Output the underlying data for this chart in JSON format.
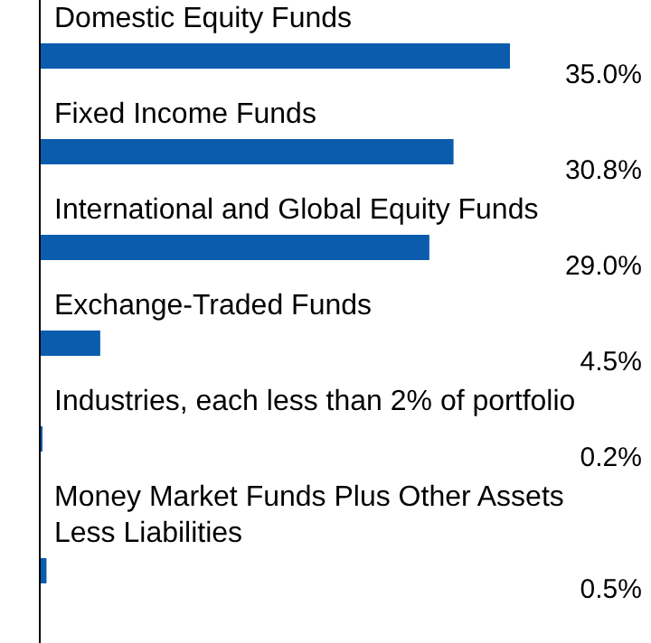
{
  "chart_data": {
    "type": "bar",
    "orientation": "horizontal",
    "categories": [
      "Domestic Equity Funds",
      "Fixed Income Funds",
      "International and Global Equity Funds",
      "Exchange-Traded Funds",
      "Industries, each less than 2% of portfolio",
      "Money Market Funds Plus Other Assets Less Liabilities"
    ],
    "values": [
      35.0,
      30.8,
      29.0,
      4.5,
      0.2,
      0.5
    ],
    "value_labels": [
      "35.0%",
      "30.8%",
      "29.0%",
      "4.5%",
      "0.2%",
      "0.5%"
    ],
    "color": "#0b5cad"
  }
}
